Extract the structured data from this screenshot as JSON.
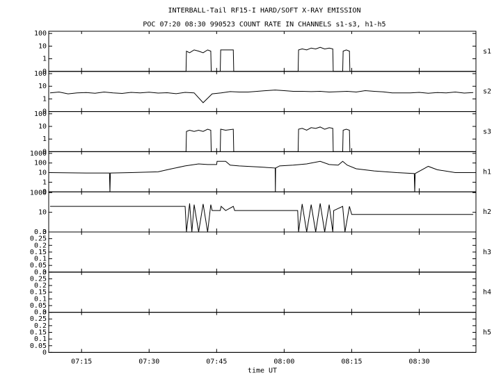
{
  "chart_data": [
    {
      "type": "line",
      "title": "INTERBALL-Tail RF15-I HARD/SOFT X-RAY EMISSION",
      "subtitle": "POC 07:20 08:30 990523  COUNT RATE IN CHANNELS s1-s3, h1-h5",
      "label": "s1",
      "log": true,
      "color": "#000000",
      "xlim": [
        427.7,
        522.6
      ],
      "ylim": [
        0.1,
        150
      ],
      "yticks": [
        {
          "value": 0.1,
          "label": "0"
        },
        1,
        10,
        100
      ],
      "x": [
        428,
        458.2,
        458.3,
        459,
        460,
        461,
        462,
        463,
        463.7,
        463.8,
        465.8,
        465.9,
        467,
        468.7,
        468.8,
        483.1,
        483.2,
        484,
        485,
        486,
        487,
        488,
        489,
        490,
        490.8,
        490.9,
        493,
        493.1,
        493.8,
        494.5,
        494.6,
        522
      ],
      "values": [
        0.1,
        0.1,
        4,
        3,
        5,
        4,
        3,
        5,
        4,
        0.1,
        0.1,
        5,
        5,
        5,
        0.1,
        0.1,
        5,
        6,
        5,
        7,
        6,
        8,
        6,
        7,
        6,
        0.1,
        0.1,
        4,
        5,
        4,
        0.1,
        0.1
      ]
    },
    {
      "type": "line",
      "label": "s2",
      "log": true,
      "color": "#000000",
      "xlim": [
        427.7,
        522.6
      ],
      "ylim": [
        0.1,
        150
      ],
      "yticks": [
        {
          "value": 0.1,
          "label": "0"
        },
        1,
        10,
        100
      ],
      "x": [
        428,
        430,
        432,
        434,
        436,
        438,
        440,
        442,
        444,
        446,
        448,
        450,
        452,
        454,
        456,
        458,
        460,
        462,
        464,
        466,
        468,
        470,
        472,
        474,
        476,
        478,
        480,
        482,
        484,
        486,
        488,
        490,
        492,
        494,
        496,
        498,
        500,
        502,
        504,
        506,
        508,
        510,
        512,
        514,
        516,
        518,
        520,
        522
      ],
      "values": [
        3,
        3.5,
        2.5,
        3,
        3.2,
        2.8,
        3.5,
        3,
        2.7,
        3.3,
        3,
        3.4,
        2.9,
        3.1,
        2.6,
        3.3,
        3,
        0.5,
        2.5,
        3,
        3.8,
        3.5,
        3.5,
        4,
        4.5,
        5,
        4.5,
        4,
        4,
        3.8,
        4,
        3.5,
        3.7,
        4,
        3.5,
        4.5,
        4,
        3.6,
        3,
        3,
        3,
        3.3,
        2.8,
        3.2,
        3,
        3.5,
        2.9,
        3.2
      ]
    },
    {
      "type": "line",
      "label": "s3",
      "log": true,
      "color": "#000000",
      "xlim": [
        427.7,
        522.6
      ],
      "ylim": [
        0.1,
        150
      ],
      "yticks": [
        {
          "value": 0.1,
          "label": "0"
        },
        1,
        10,
        100
      ],
      "x": [
        428,
        458.2,
        458.3,
        459,
        460,
        461,
        462,
        463,
        463.7,
        463.8,
        465.8,
        465.9,
        467,
        468.7,
        468.8,
        483.1,
        483.2,
        484,
        485,
        486,
        487,
        488,
        489,
        490,
        490.8,
        490.9,
        493,
        493.1,
        493.8,
        494.5,
        494.6,
        522
      ],
      "values": [
        0.1,
        0.1,
        4,
        5,
        4,
        5,
        4,
        6,
        5,
        0.1,
        0.1,
        6,
        5,
        6,
        0.1,
        0.1,
        6,
        7,
        5,
        8,
        7,
        9,
        6,
        8,
        7,
        0.1,
        0.1,
        5,
        6,
        5,
        0.1,
        0.1
      ]
    },
    {
      "type": "line",
      "label": "h1",
      "log": true,
      "color": "#000000",
      "xlim": [
        427.7,
        522.6
      ],
      "ylim": [
        0.1,
        1500
      ],
      "yticks": [
        {
          "value": 0.1,
          "label": "0"
        },
        1,
        10,
        100,
        1000
      ],
      "x": [
        428,
        436,
        441.2,
        441.3,
        441.4,
        446,
        452,
        455,
        458,
        461,
        463,
        465,
        465.1,
        467,
        468,
        470,
        474,
        478,
        478.05,
        478.1,
        479,
        482,
        485,
        488,
        490,
        492,
        493,
        494,
        496,
        500,
        505,
        508.9,
        509,
        509.1,
        511,
        512,
        514,
        518,
        522
      ],
      "values": [
        10,
        9,
        9,
        0.1,
        9,
        10,
        12,
        25,
        50,
        80,
        70,
        70,
        150,
        150,
        60,
        50,
        40,
        30,
        0.1,
        30,
        50,
        60,
        80,
        150,
        70,
        60,
        150,
        60,
        25,
        15,
        10,
        8,
        0.1,
        8,
        25,
        45,
        20,
        10,
        10
      ]
    },
    {
      "type": "line",
      "label": "h2",
      "log": true,
      "color": "#000000",
      "xlim": [
        427.7,
        522.6
      ],
      "ylim": [
        0.1,
        1200
      ],
      "yticks": [
        {
          "value": 0.1,
          "label": "0"
        },
        10,
        1000
      ],
      "x": [
        428,
        458,
        458.3,
        459,
        459.5,
        460,
        461,
        462,
        463,
        463.7,
        464,
        465.8,
        466,
        467,
        468.7,
        469,
        483,
        483.2,
        484,
        485,
        486,
        487,
        488,
        489,
        490,
        490.8,
        491,
        493,
        493.5,
        494.5,
        495,
        522
      ],
      "values": [
        40,
        40,
        0.1,
        80,
        0.1,
        60,
        0.1,
        70,
        0.1,
        60,
        15,
        15,
        40,
        15,
        40,
        15,
        15,
        0.1,
        70,
        0.1,
        60,
        0.1,
        80,
        0.1,
        60,
        0.1,
        15,
        40,
        0.1,
        40,
        6,
        6
      ]
    },
    {
      "type": "line",
      "label": "h3",
      "log": false,
      "color": "#000000",
      "xlim": [
        427.7,
        522.6
      ],
      "ylim": [
        0,
        0.3
      ],
      "yticks": [
        0,
        0.05,
        0.1,
        0.15,
        0.2,
        0.25,
        0.3
      ],
      "x": [
        428,
        522
      ],
      "values": [
        0,
        0
      ]
    },
    {
      "type": "line",
      "label": "h4",
      "log": false,
      "color": "#000000",
      "xlim": [
        427.7,
        522.6
      ],
      "ylim": [
        0,
        0.3
      ],
      "yticks": [
        0,
        0.05,
        0.1,
        0.15,
        0.2,
        0.25,
        0.3
      ],
      "x": [
        428,
        522
      ],
      "values": [
        0,
        0
      ]
    },
    {
      "type": "line",
      "label": "h5",
      "log": false,
      "color": "#000000",
      "xlim": [
        427.7,
        522.6
      ],
      "ylim": [
        0,
        0.3
      ],
      "yticks": [
        0,
        0.05,
        0.1,
        0.15,
        0.2,
        0.25,
        0.3
      ],
      "x": [
        428,
        522
      ],
      "values": [
        0,
        0
      ],
      "xlabel": "time UT",
      "xticks": [
        {
          "value": 435,
          "label": "07:15"
        },
        {
          "value": 450,
          "label": "07:30"
        },
        {
          "value": 465,
          "label": "07:45"
        },
        {
          "value": 480,
          "label": "08:00"
        },
        {
          "value": 495,
          "label": "08:15"
        },
        {
          "value": 510,
          "label": "08:30"
        }
      ]
    }
  ]
}
